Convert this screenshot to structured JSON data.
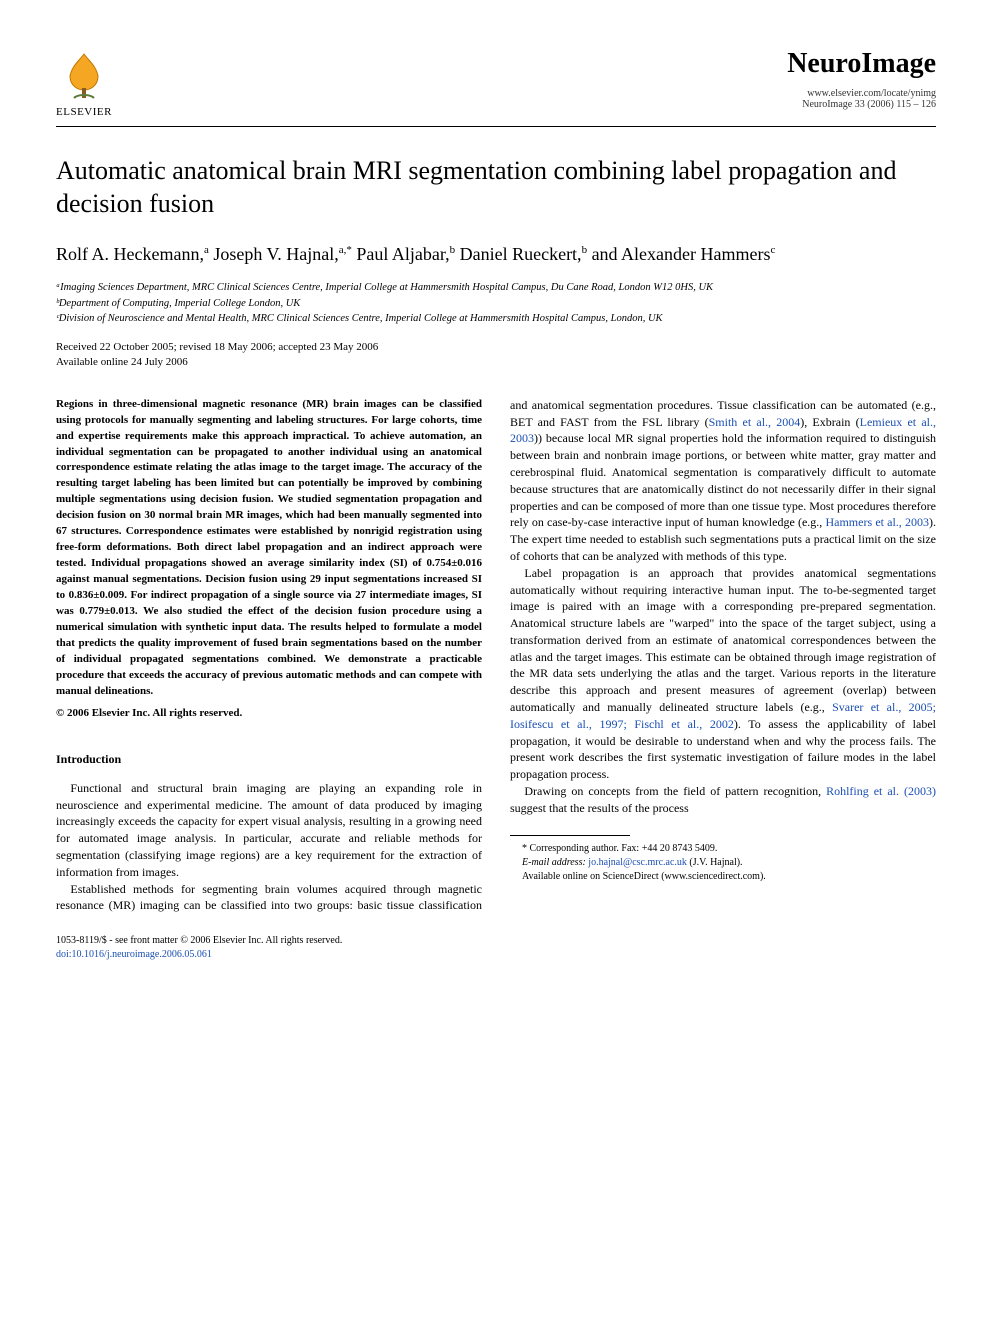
{
  "header": {
    "publisher_name": "ELSEVIER",
    "journal_title": "NeuroImage",
    "journal_url": "www.elsevier.com/locate/ynimg",
    "journal_citation": "NeuroImage 33 (2006) 115 – 126"
  },
  "title": "Automatic anatomical brain MRI segmentation combining label propagation and decision fusion",
  "authors_html": "Rolf A. Heckemann,<sup>a</sup> Joseph V. Hajnal,<sup>a,*</sup> Paul Aljabar,<sup>b</sup> Daniel Rueckert,<sup>b</sup> and Alexander Hammers<sup>c</sup>",
  "affiliations": [
    "ᵃImaging Sciences Department, MRC Clinical Sciences Centre, Imperial College at Hammersmith Hospital Campus, Du Cane Road, London W12 0HS, UK",
    "ᵇDepartment of Computing, Imperial College London, UK",
    "ᶜDivision of Neuroscience and Mental Health, MRC Clinical Sciences Centre, Imperial College at Hammersmith Hospital Campus, London, UK"
  ],
  "dates": {
    "received": "Received 22 October 2005; revised 18 May 2006; accepted 23 May 2006",
    "online": "Available online 24 July 2006"
  },
  "abstract": "Regions in three-dimensional magnetic resonance (MR) brain images can be classified using protocols for manually segmenting and labeling structures. For large cohorts, time and expertise requirements make this approach impractical. To achieve automation, an individual segmentation can be propagated to another individual using an anatomical correspondence estimate relating the atlas image to the target image. The accuracy of the resulting target labeling has been limited but can potentially be improved by combining multiple segmentations using decision fusion. We studied segmentation propagation and decision fusion on 30 normal brain MR images, which had been manually segmented into 67 structures. Correspondence estimates were established by nonrigid registration using free-form deformations. Both direct label propagation and an indirect approach were tested. Individual propagations showed an average similarity index (SI) of 0.754±0.016 against manual segmentations. Decision fusion using 29 input segmentations increased SI to 0.836±0.009. For indirect propagation of a single source via 27 intermediate images, SI was 0.779±0.013. We also studied the effect of the decision fusion procedure using a numerical simulation with synthetic input data. The results helped to formulate a model that predicts the quality improvement of fused brain segmentations based on the number of individual propagated segmentations combined. We demonstrate a practicable procedure that exceeds the accuracy of previous automatic methods and can compete with manual delineations.",
  "copyright_line": "© 2006 Elsevier Inc. All rights reserved.",
  "sections": {
    "introduction_heading": "Introduction",
    "intro_p1": "Functional and structural brain imaging are playing an expanding role in neuroscience and experimental medicine. The amount of data produced by imaging increasingly exceeds the capacity for expert visual analysis, resulting in a growing need for automated image analysis. In particular, accurate and reliable methods for segmentation (classifying image regions) are a key requirement for the extraction of information from images.",
    "intro_p2_pre": "Established methods for segmenting brain volumes acquired through magnetic resonance (MR) imaging can be classified into two groups: basic tissue classification and anatomical segmentation procedures. Tissue classification can be automated (e.g., BET and FAST from the FSL library (",
    "intro_p2_ref1": "Smith et al., 2004",
    "intro_p2_mid1": "), Exbrain (",
    "intro_p2_ref2": "Lemieux et al., 2003",
    "intro_p2_mid2": ")) because local MR signal properties hold the information required to distinguish between brain and nonbrain image portions, or between white matter, gray matter and cerebrospinal fluid. Anatomical segmentation is comparatively difficult to automate because structures that are anatomically distinct do not necessarily differ in their signal properties and can be composed of more than one tissue type. Most procedures therefore rely on case-by-case interactive input of human knowledge (e.g., ",
    "intro_p2_ref3": "Hammers et al., 2003",
    "intro_p2_post": "). The expert time needed to establish such segmentations puts a practical limit on the size of cohorts that can be analyzed with methods of this type.",
    "intro_p3_pre": "Label propagation is an approach that provides anatomical segmentations automatically without requiring interactive human input. The to-be-segmented target image is paired with an image with a corresponding pre-prepared segmentation. Anatomical structure labels are \"warped\" into the space of the target subject, using a transformation derived from an estimate of anatomical correspondences between the atlas and the target images. This estimate can be obtained through image registration of the MR data sets underlying the atlas and the target. Various reports in the literature describe this approach and present measures of agreement (overlap) between automatically and manually delineated structure labels (e.g., ",
    "intro_p3_ref1": "Svarer et al., 2005; Iosifescu et al., 1997; Fischl et al., 2002",
    "intro_p3_post": "). To assess the applicability of label propagation, it would be desirable to understand when and why the process fails. The present work describes the first systematic investigation of failure modes in the label propagation process.",
    "intro_p4_pre": "Drawing on concepts from the field of pattern recognition, ",
    "intro_p4_ref1": "Rohlfing et al. (2003)",
    "intro_p4_post": " suggest that the results of the process"
  },
  "footnotes": {
    "corresponding": "* Corresponding author. Fax: +44 20 8743 5409.",
    "email_label": "E-mail address:",
    "email": "jo.hajnal@csc.mrc.ac.uk",
    "email_person": "(J.V. Hajnal).",
    "sciencedirect": "Available online on ScienceDirect (www.sciencedirect.com)."
  },
  "bottom": {
    "issn_line": "1053-8119/$ - see front matter © 2006 Elsevier Inc. All rights reserved.",
    "doi_line": "doi:10.1016/j.neuroimage.2006.05.061"
  },
  "colors": {
    "link": "#1a4fb3",
    "tree_fill": "#f5a623",
    "tree_stroke": "#c07800"
  }
}
